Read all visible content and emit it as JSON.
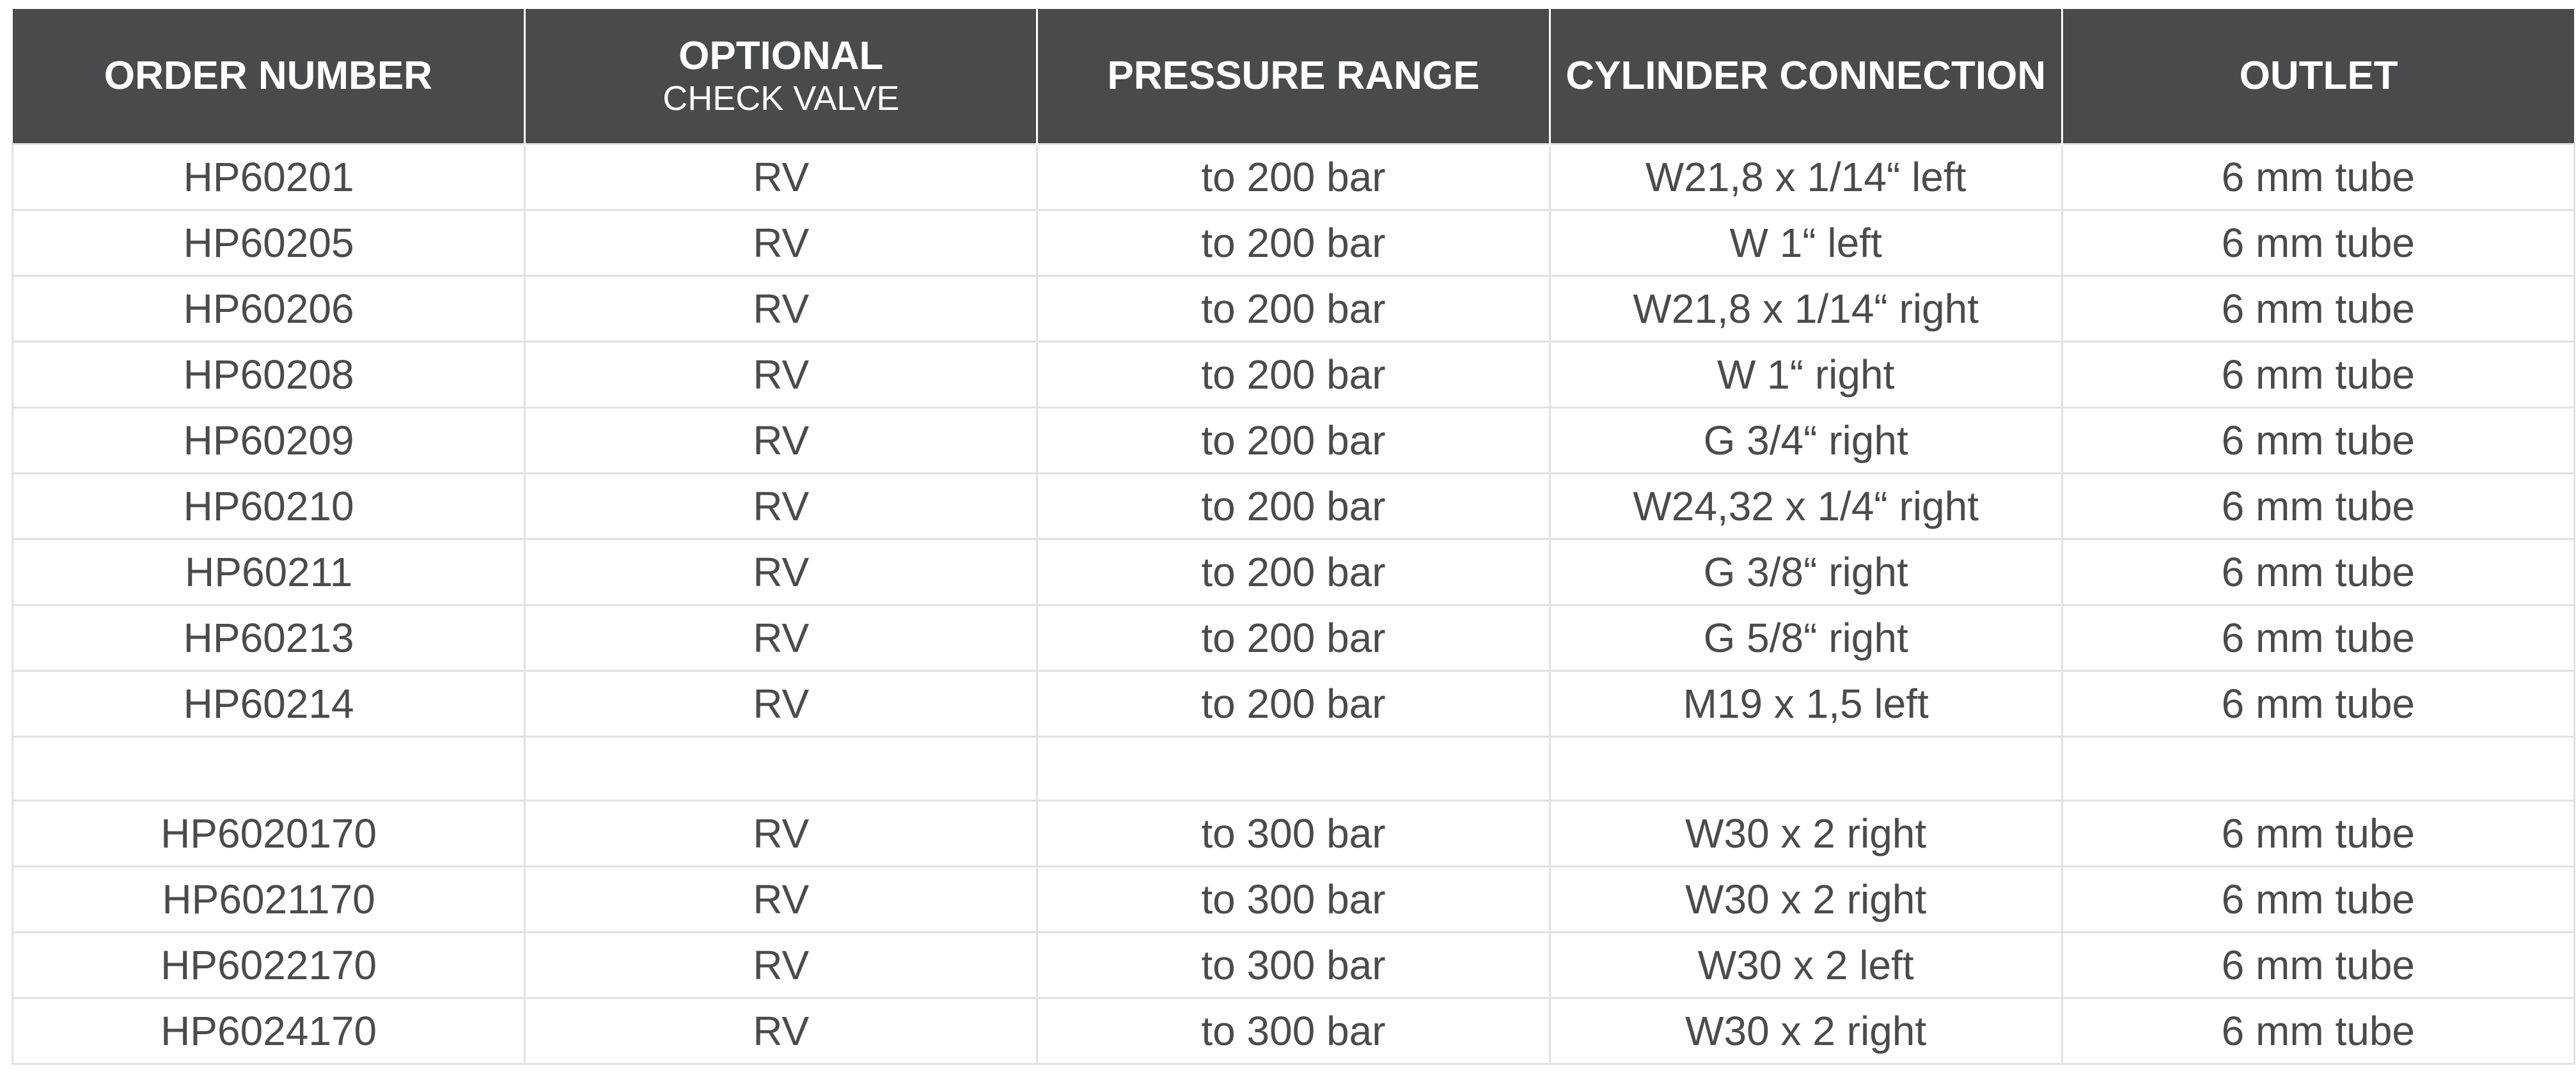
{
  "table": {
    "headers": {
      "order_number": "ORDER NUMBER",
      "optional_main": "OPTIONAL",
      "optional_sub": "CHECK VALVE",
      "pressure_range": "PRESSURE RANGE",
      "cylinder_connection": "CYLINDER CONNECTION",
      "outlet": "OUTLET"
    },
    "rows": [
      [
        "HP60201",
        "RV",
        "to 200 bar",
        "W21,8 x 1/14“ left",
        "6 mm tube"
      ],
      [
        "HP60205",
        "RV",
        "to 200 bar",
        "W 1“ left",
        "6 mm tube"
      ],
      [
        "HP60206",
        "RV",
        "to 200 bar",
        "W21,8 x 1/14“ right",
        "6 mm tube"
      ],
      [
        "HP60208",
        "RV",
        "to 200 bar",
        "W 1“ right",
        "6 mm tube"
      ],
      [
        "HP60209",
        "RV",
        "to 200 bar",
        "G 3/4“ right",
        "6 mm tube"
      ],
      [
        "HP60210",
        "RV",
        "to 200 bar",
        "W24,32 x 1/4“ right",
        "6 mm tube"
      ],
      [
        "HP60211",
        "RV",
        "to 200 bar",
        "G 3/8“ right",
        "6 mm tube"
      ],
      [
        "HP60213",
        "RV",
        "to 200 bar",
        "G 5/8“ right",
        "6 mm tube"
      ],
      [
        "HP60214",
        "RV",
        "to 200 bar",
        "M19 x 1,5 left",
        "6 mm tube"
      ],
      [
        "",
        "",
        "",
        "",
        ""
      ],
      [
        "HP6020170",
        "RV",
        "to 300 bar",
        "W30 x 2 right",
        "6 mm tube"
      ],
      [
        "HP6021170",
        "RV",
        "to 300 bar",
        "W30 x 2 right",
        "6 mm tube"
      ],
      [
        "HP6022170",
        "RV",
        "to 300 bar",
        "W30 x 2 left",
        "6 mm tube"
      ],
      [
        "HP6024170",
        "RV",
        "to 300 bar",
        "W30 x 2 right",
        "6 mm tube"
      ]
    ]
  },
  "colors": {
    "header_background": "#494a4c",
    "header_text": "#ffffff",
    "cell_text": "#4b4b4b",
    "grid_line": "#e2e2e2"
  }
}
